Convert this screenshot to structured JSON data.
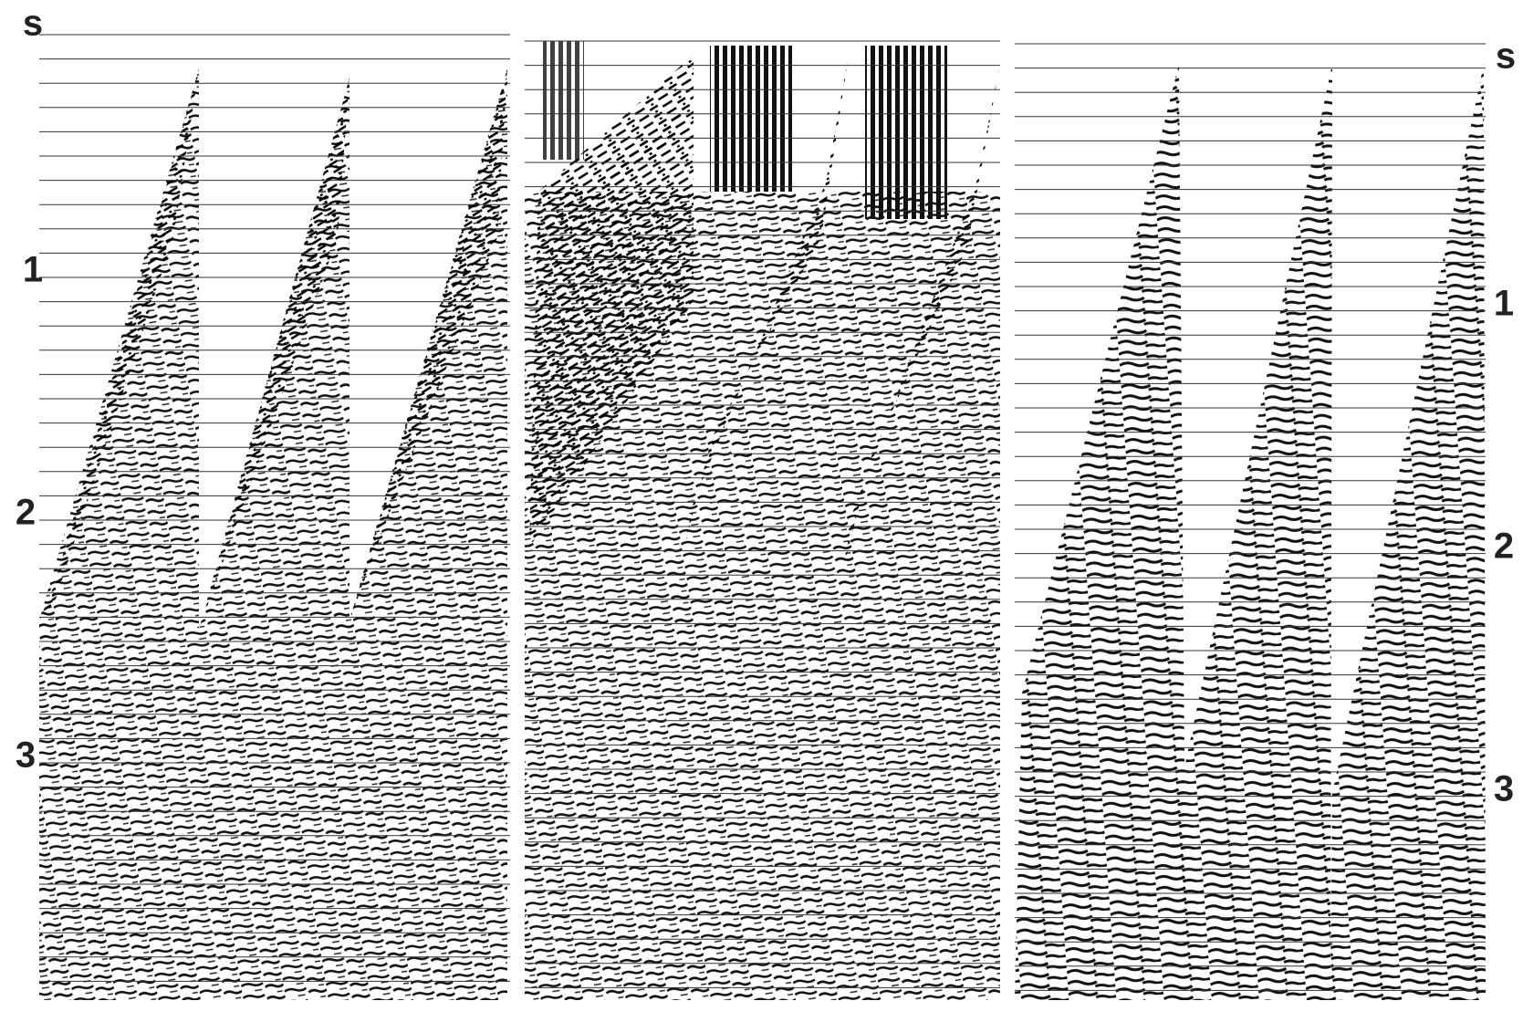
{
  "left_axis": {
    "unit": "s",
    "ticks": [
      "1",
      "2",
      "3"
    ]
  },
  "right_axis": {
    "unit": "s",
    "ticks": [
      "1",
      "2",
      "3"
    ]
  }
}
